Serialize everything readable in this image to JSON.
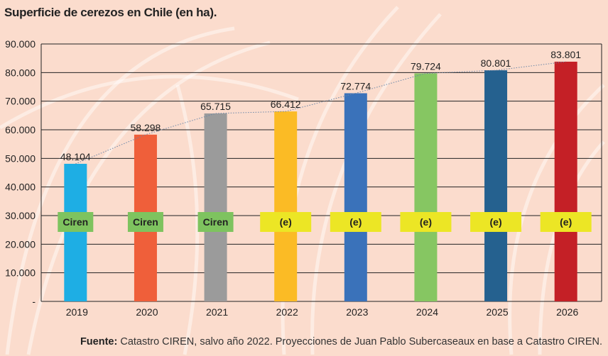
{
  "title": "Superficie de cerezos en Chile (en ha).",
  "footer": {
    "label": "Fuente:",
    "text": " Catastro CIREN, salvo año 2022. Proyecciones de Juan Pablo Subercaseaux en base a Catastro CIREN."
  },
  "chart_data": {
    "type": "bar",
    "title": "Superficie de cerezos en Chile (en ha).",
    "xlabel": "",
    "ylabel": "",
    "categories": [
      "2019",
      "2020",
      "2021",
      "2022",
      "2023",
      "2024",
      "2025",
      "2026"
    ],
    "values": [
      48104,
      58298,
      65715,
      66412,
      72774,
      79724,
      80801,
      83801
    ],
    "value_labels": [
      "48.104",
      "58.298",
      "65.715",
      "66.412",
      "72.774",
      "79.724",
      "80.801",
      "83.801"
    ],
    "tags": [
      "Ciren",
      "Ciren",
      "Ciren",
      "(e)",
      "(e)",
      "(e)",
      "(e)",
      "(e)"
    ],
    "tag_colors": {
      "Ciren": "#7ec35f",
      "(e)": "#ece625"
    },
    "colors": [
      "#1eaee4",
      "#ef5f3a",
      "#9b9b9b",
      "#fbbb25",
      "#3a72ba",
      "#86c662",
      "#25618f",
      "#c42026"
    ],
    "ylim": [
      0,
      90000
    ],
    "yticks": [
      0,
      10000,
      20000,
      30000,
      40000,
      50000,
      60000,
      70000,
      80000,
      90000
    ],
    "ytick_labels": [
      "-",
      "10.000",
      "20.000",
      "30.000",
      "40.000",
      "50.000",
      "60.000",
      "70.000",
      "80.000",
      "90.000"
    ],
    "grid": true,
    "trendline": "dotted"
  }
}
